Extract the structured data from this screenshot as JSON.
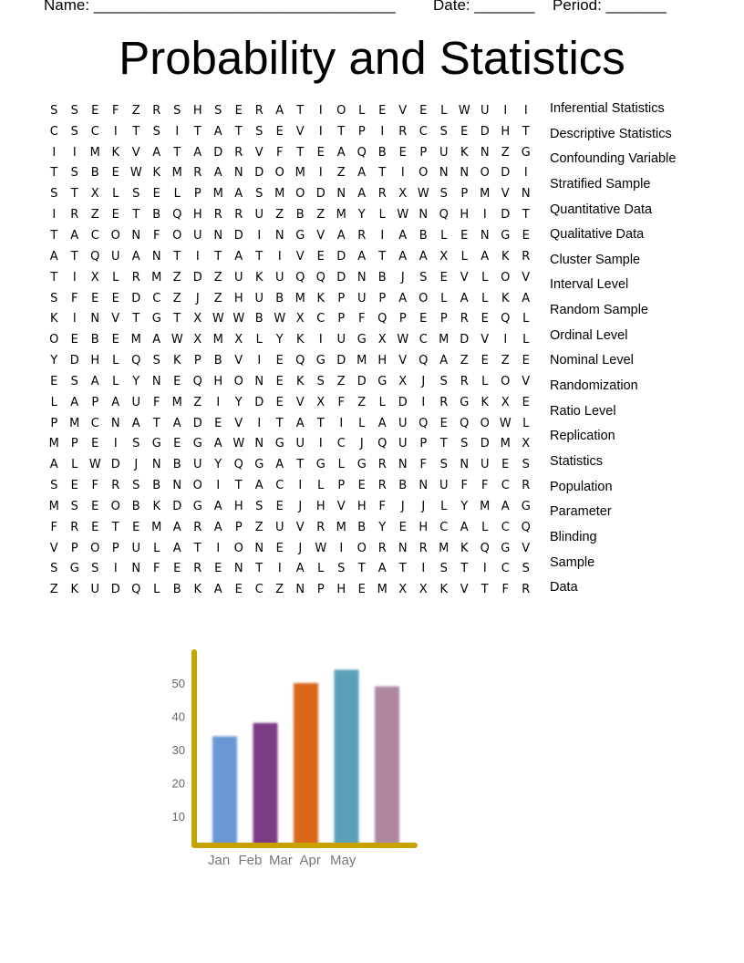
{
  "header": {
    "name_label": "Name: ___________________________________",
    "date_label": "Date: _______",
    "period_label": "Period: _______"
  },
  "title": "Probability and Statistics",
  "grid": [
    "SSEFZRSHSERATIOLEVELWUII",
    "CSCITSITATSEVITPIRCSEDHT",
    "IIMKVATADRVFTEAQBEPUKNZG",
    "TSBEWKMRANDOMIZATIONNODI",
    "STXLSELPMASMODNARXWSPMVN",
    "IRZETBQHRRUZBZMYLWNQHIDT",
    "TACONFOUNDINGVARIABLENGE",
    "ATQUANTITATIVEDATAAXLAKR",
    "TIXLRMZDZUKUQQDNBJSEVLOV",
    "SFEEDCZJZHUBMKPUPAOLALKA",
    "KINVTGTXWWBWXCPFQPEPREQL",
    "OEBEMAWXMXLYKIUGXWCMDVIL",
    "YDHLQSKPBVIEQGDMHVQAZEZE",
    "ESALYNEQHONEKSZDGXJSRLOV",
    "LAPAUFMZIYDEVXFZLDIRGKXE",
    "PMCNATADEVITATILAUQEQOWL",
    "MPEISGEGAWNGUICJQUPTSDMX",
    "ALWDJNBUYQGATGLGRNFSNUES",
    "SEFRSBNOITACILPERBNUFFCR",
    "MSEOBKDGAHSEJHVHFJJLYMAG",
    "FRETEMARAPZUVRMBYEHCALCQ",
    "VPOPULATIONEJWIORNRMKQGV",
    "SGSINFERENTIALSTATISTICS",
    "ZKUDQLBKAECZNPHEMXXKVTFR"
  ],
  "words": [
    "Inferential Statistics",
    "Descriptive Statistics",
    "Confounding Variable",
    "Stratified Sample",
    "Quantitative Data",
    "Qualitative Data",
    "Cluster Sample",
    "Interval Level",
    "Random Sample",
    "Ordinal Level",
    "Nominal Level",
    "Randomization",
    "Ratio Level",
    "Replication",
    "Statistics",
    "Population",
    "Parameter",
    "Blinding",
    "Sample",
    "Data"
  ],
  "chart_data": {
    "type": "bar",
    "categories": [
      "Jan",
      "Feb",
      "Mar",
      "Apr",
      "May"
    ],
    "values": [
      34,
      38,
      50,
      54,
      49
    ],
    "yticks": [
      "10",
      "20",
      "30",
      "40",
      "50"
    ],
    "ylim": [
      0,
      60
    ],
    "colors": [
      "#6a96d4",
      "#7b3a85",
      "#d9681f",
      "#5aa0b8",
      "#ad86a0"
    ],
    "axis_color": "#c8a200"
  }
}
